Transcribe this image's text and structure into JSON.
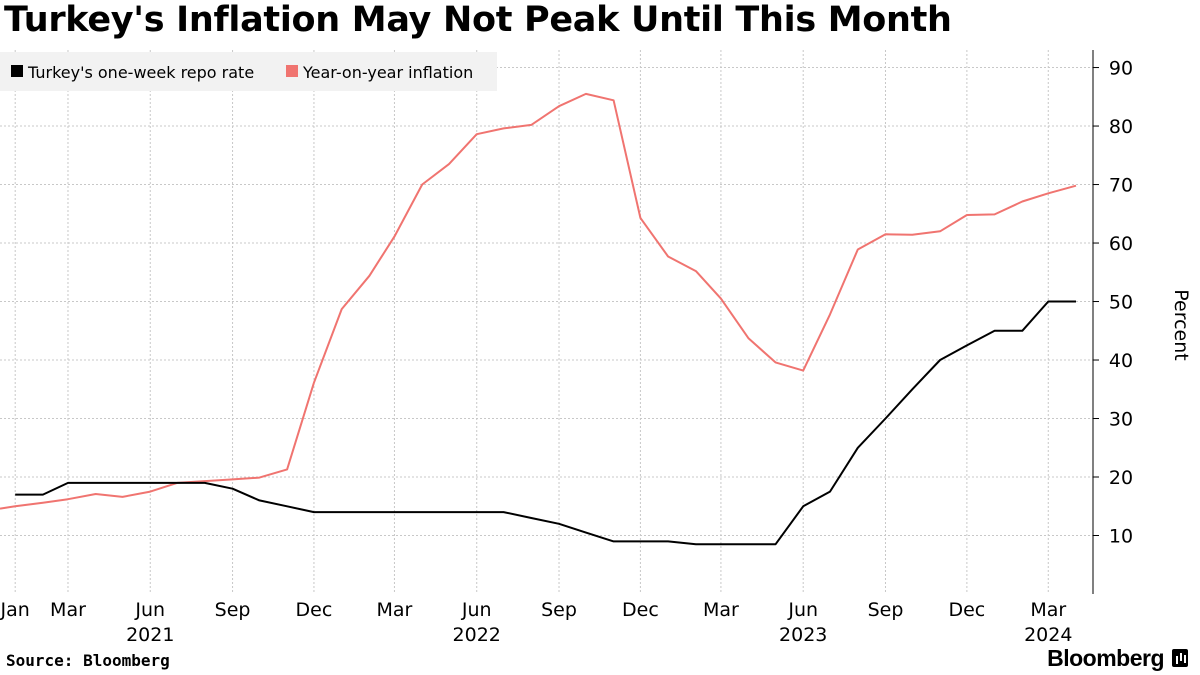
{
  "title": "Turkey's Inflation May Not Peak Until This Month",
  "source": "Source: Bloomberg",
  "brand": "Bloomberg",
  "colors": {
    "repo": "#000000",
    "inflation": "#f07470",
    "grid": "#c8c8c8"
  },
  "chart_data": {
    "type": "line",
    "ylabel": "Percent",
    "ylim": [
      0,
      93
    ],
    "yticks": [
      10,
      20,
      30,
      40,
      50,
      60,
      70,
      80,
      90
    ],
    "xlim": [
      "2020-12-15",
      "2024-04-20"
    ],
    "month_ticks": [
      {
        "date": "2021-01-01",
        "label": "Jan"
      },
      {
        "date": "2021-03-01",
        "label": "Mar"
      },
      {
        "date": "2021-06-01",
        "label": "Jun"
      },
      {
        "date": "2021-09-01",
        "label": "Sep"
      },
      {
        "date": "2021-12-01",
        "label": "Dec"
      },
      {
        "date": "2022-03-01",
        "label": "Mar"
      },
      {
        "date": "2022-06-01",
        "label": "Jun"
      },
      {
        "date": "2022-09-01",
        "label": "Sep"
      },
      {
        "date": "2022-12-01",
        "label": "Dec"
      },
      {
        "date": "2023-03-01",
        "label": "Mar"
      },
      {
        "date": "2023-06-01",
        "label": "Jun"
      },
      {
        "date": "2023-09-01",
        "label": "Sep"
      },
      {
        "date": "2023-12-01",
        "label": "Dec"
      },
      {
        "date": "2024-03-01",
        "label": "Mar"
      }
    ],
    "year_ticks": [
      {
        "date": "2021-06-01",
        "label": "2021"
      },
      {
        "date": "2022-06-01",
        "label": "2022"
      },
      {
        "date": "2023-06-01",
        "label": "2023"
      },
      {
        "date": "2024-03-01",
        "label": "2024"
      }
    ],
    "series": [
      {
        "name": "Turkey's one-week repo rate",
        "color": "#000000",
        "points": [
          [
            "2021-01-01",
            17
          ],
          [
            "2021-02-01",
            17
          ],
          [
            "2021-03-01",
            19
          ],
          [
            "2021-04-01",
            19
          ],
          [
            "2021-05-01",
            19
          ],
          [
            "2021-06-01",
            19
          ],
          [
            "2021-07-01",
            19
          ],
          [
            "2021-08-01",
            19
          ],
          [
            "2021-09-01",
            18
          ],
          [
            "2021-10-01",
            16
          ],
          [
            "2021-11-01",
            15
          ],
          [
            "2021-12-01",
            14
          ],
          [
            "2022-01-01",
            14
          ],
          [
            "2022-02-01",
            14
          ],
          [
            "2022-03-01",
            14
          ],
          [
            "2022-04-01",
            14
          ],
          [
            "2022-05-01",
            14
          ],
          [
            "2022-06-01",
            14
          ],
          [
            "2022-07-01",
            14
          ],
          [
            "2022-08-01",
            13
          ],
          [
            "2022-09-01",
            12
          ],
          [
            "2022-10-01",
            10.5
          ],
          [
            "2022-11-01",
            9
          ],
          [
            "2022-12-01",
            9
          ],
          [
            "2023-01-01",
            9
          ],
          [
            "2023-02-01",
            8.5
          ],
          [
            "2023-03-01",
            8.5
          ],
          [
            "2023-04-01",
            8.5
          ],
          [
            "2023-05-01",
            8.5
          ],
          [
            "2023-06-01",
            15
          ],
          [
            "2023-07-01",
            17.5
          ],
          [
            "2023-08-01",
            25
          ],
          [
            "2023-09-01",
            30
          ],
          [
            "2023-10-01",
            35
          ],
          [
            "2023-11-01",
            40
          ],
          [
            "2023-12-01",
            42.5
          ],
          [
            "2024-01-01",
            45
          ],
          [
            "2024-02-01",
            45
          ],
          [
            "2024-03-01",
            50
          ],
          [
            "2024-04-01",
            50
          ]
        ]
      },
      {
        "name": "Year-on-year inflation",
        "color": "#f07470",
        "points": [
          [
            "2020-12-15",
            14.6
          ],
          [
            "2021-01-01",
            15.0
          ],
          [
            "2021-02-01",
            15.6
          ],
          [
            "2021-03-01",
            16.2
          ],
          [
            "2021-04-01",
            17.1
          ],
          [
            "2021-05-01",
            16.6
          ],
          [
            "2021-06-01",
            17.5
          ],
          [
            "2021-07-01",
            19.0
          ],
          [
            "2021-08-01",
            19.3
          ],
          [
            "2021-09-01",
            19.6
          ],
          [
            "2021-10-01",
            19.9
          ],
          [
            "2021-11-01",
            21.3
          ],
          [
            "2021-12-01",
            36.1
          ],
          [
            "2022-01-01",
            48.7
          ],
          [
            "2022-02-01",
            54.4
          ],
          [
            "2022-03-01",
            61.1
          ],
          [
            "2022-04-01",
            70.0
          ],
          [
            "2022-05-01",
            73.5
          ],
          [
            "2022-06-01",
            78.6
          ],
          [
            "2022-07-01",
            79.6
          ],
          [
            "2022-08-01",
            80.2
          ],
          [
            "2022-09-01",
            83.4
          ],
          [
            "2022-10-01",
            85.5
          ],
          [
            "2022-11-01",
            84.4
          ],
          [
            "2022-12-01",
            64.3
          ],
          [
            "2023-01-01",
            57.7
          ],
          [
            "2023-02-01",
            55.2
          ],
          [
            "2023-03-01",
            50.5
          ],
          [
            "2023-04-01",
            43.7
          ],
          [
            "2023-05-01",
            39.6
          ],
          [
            "2023-06-01",
            38.2
          ],
          [
            "2023-07-01",
            47.8
          ],
          [
            "2023-08-01",
            58.9
          ],
          [
            "2023-09-01",
            61.5
          ],
          [
            "2023-10-01",
            61.4
          ],
          [
            "2023-11-01",
            62.0
          ],
          [
            "2023-12-01",
            64.8
          ],
          [
            "2024-01-01",
            64.9
          ],
          [
            "2024-02-01",
            67.1
          ],
          [
            "2024-03-01",
            68.5
          ],
          [
            "2024-04-01",
            69.8
          ]
        ]
      }
    ],
    "grid": true,
    "legend_position": "top-left"
  }
}
